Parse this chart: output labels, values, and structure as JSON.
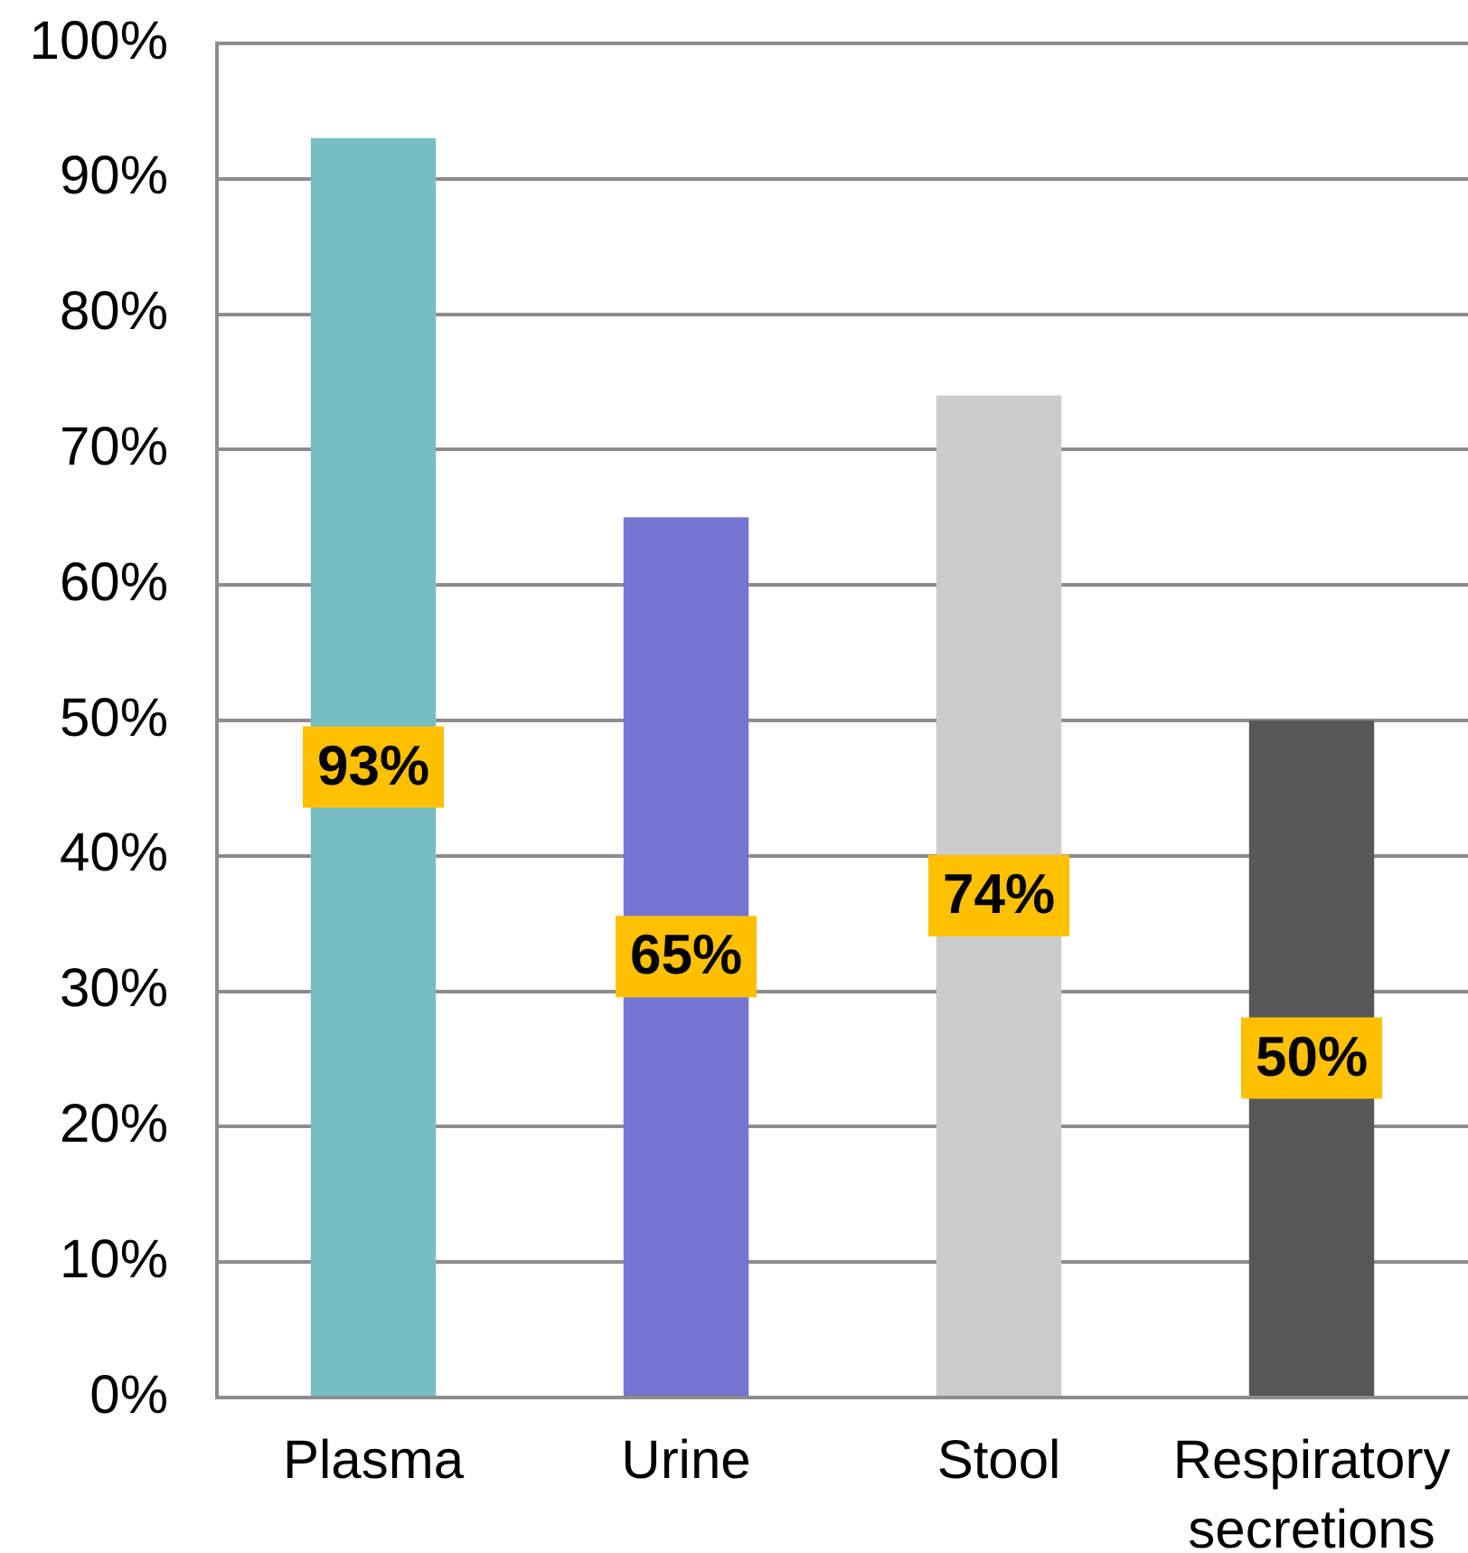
{
  "chart_data": {
    "type": "bar",
    "categories": [
      "Plasma",
      "Urine",
      "Stool",
      "Respiratory secretions"
    ],
    "values": [
      93,
      65,
      74,
      50
    ],
    "colors": [
      "#75bfc4",
      "#7575d1",
      "#cccccc",
      "#575757"
    ],
    "value_labels": [
      "93%",
      "65%",
      "74%",
      "50%"
    ],
    "ylim": [
      0,
      100
    ],
    "yticks": [
      {
        "value": 0,
        "label": "0%"
      },
      {
        "value": 10,
        "label": "10%"
      },
      {
        "value": 20,
        "label": "20%"
      },
      {
        "value": 30,
        "label": "30%"
      },
      {
        "value": 40,
        "label": "40%"
      },
      {
        "value": 50,
        "label": "50%"
      },
      {
        "value": 60,
        "label": "60%"
      },
      {
        "value": 70,
        "label": "70%"
      },
      {
        "value": 80,
        "label": "80%"
      },
      {
        "value": 90,
        "label": "90%"
      },
      {
        "value": 100,
        "label": "100%"
      }
    ],
    "grid": "y"
  }
}
